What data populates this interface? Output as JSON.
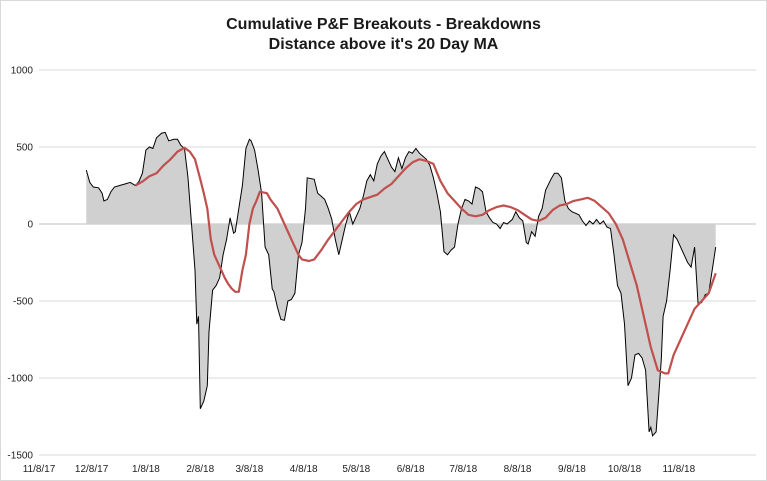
{
  "chart_data": {
    "type": "area",
    "title": "Cumulative P&F Breakouts - Breakdowns",
    "subtitle": "Distance above it's 20 Day MA",
    "xlabel": "",
    "ylabel": "",
    "ylim": [
      -1500,
      1000
    ],
    "yticks": [
      1000,
      500,
      0,
      -500,
      -1000,
      -1500
    ],
    "x_date_range": [
      "2017-11-08",
      "2018-12-22"
    ],
    "xtick_labels": [
      "11/8/17",
      "12/8/17",
      "1/8/18",
      "2/8/18",
      "3/8/18",
      "4/8/18",
      "5/8/18",
      "6/8/18",
      "7/8/18",
      "8/8/18",
      "9/8/18",
      "10/8/18",
      "11/8/18"
    ],
    "xtick_dates": [
      "2017-11-08",
      "2017-12-08",
      "2018-01-08",
      "2018-02-08",
      "2018-03-08",
      "2018-04-08",
      "2018-05-08",
      "2018-06-08",
      "2018-07-08",
      "2018-08-08",
      "2018-09-08",
      "2018-10-08",
      "2018-11-08"
    ],
    "grid": "horizontal",
    "colors": {
      "area_fill": "#d0d0d0",
      "area_line": "#000000",
      "ma_line": "#c0504d"
    },
    "series": [
      {
        "name": "",
        "style": "area",
        "points": [
          [
            "2017-12-05",
            350
          ],
          [
            "2017-12-07",
            270
          ],
          [
            "2017-12-09",
            240
          ],
          [
            "2017-12-12",
            235
          ],
          [
            "2017-12-14",
            200
          ],
          [
            "2017-12-15",
            150
          ],
          [
            "2017-12-17",
            160
          ],
          [
            "2017-12-19",
            210
          ],
          [
            "2017-12-21",
            240
          ],
          [
            "2017-12-24",
            250
          ],
          [
            "2017-12-27",
            260
          ],
          [
            "2017-12-30",
            270
          ],
          [
            "2018-01-02",
            250
          ],
          [
            "2018-01-04",
            275
          ],
          [
            "2018-01-06",
            330
          ],
          [
            "2018-01-08",
            480
          ],
          [
            "2018-01-10",
            500
          ],
          [
            "2018-01-12",
            490
          ],
          [
            "2018-01-14",
            560
          ],
          [
            "2018-01-17",
            590
          ],
          [
            "2018-01-19",
            595
          ],
          [
            "2018-01-21",
            540
          ],
          [
            "2018-01-24",
            550
          ],
          [
            "2018-01-26",
            550
          ],
          [
            "2018-01-28",
            510
          ],
          [
            "2018-01-30",
            490
          ],
          [
            "2018-02-01",
            300
          ],
          [
            "2018-02-03",
            0
          ],
          [
            "2018-02-05",
            -300
          ],
          [
            "2018-02-06",
            -650
          ],
          [
            "2018-02-07",
            -600
          ],
          [
            "2018-02-08",
            -1200
          ],
          [
            "2018-02-10",
            -1150
          ],
          [
            "2018-02-12",
            -1050
          ],
          [
            "2018-02-13",
            -700
          ],
          [
            "2018-02-15",
            -430
          ],
          [
            "2018-02-17",
            -400
          ],
          [
            "2018-02-19",
            -350
          ],
          [
            "2018-02-21",
            -200
          ],
          [
            "2018-02-23",
            -100
          ],
          [
            "2018-02-25",
            40
          ],
          [
            "2018-02-27",
            -60
          ],
          [
            "2018-02-28",
            -50
          ],
          [
            "2018-03-02",
            100
          ],
          [
            "2018-03-04",
            250
          ],
          [
            "2018-03-06",
            490
          ],
          [
            "2018-03-08",
            550
          ],
          [
            "2018-03-09",
            540
          ],
          [
            "2018-03-11",
            480
          ],
          [
            "2018-03-13",
            350
          ],
          [
            "2018-03-15",
            200
          ],
          [
            "2018-03-17",
            -150
          ],
          [
            "2018-03-19",
            -200
          ],
          [
            "2018-03-21",
            -420
          ],
          [
            "2018-03-22",
            -440
          ],
          [
            "2018-03-24",
            -540
          ],
          [
            "2018-03-26",
            -620
          ],
          [
            "2018-03-28",
            -625
          ],
          [
            "2018-03-30",
            -500
          ],
          [
            "2018-04-01",
            -490
          ],
          [
            "2018-04-03",
            -450
          ],
          [
            "2018-04-05",
            -200
          ],
          [
            "2018-04-07",
            -120
          ],
          [
            "2018-04-09",
            100
          ],
          [
            "2018-04-10",
            300
          ],
          [
            "2018-04-14",
            290
          ],
          [
            "2018-04-16",
            200
          ],
          [
            "2018-04-18",
            180
          ],
          [
            "2018-04-20",
            160
          ],
          [
            "2018-04-22",
            100
          ],
          [
            "2018-04-24",
            30
          ],
          [
            "2018-04-26",
            -100
          ],
          [
            "2018-04-28",
            -200
          ],
          [
            "2018-04-30",
            -100
          ],
          [
            "2018-05-02",
            0
          ],
          [
            "2018-05-04",
            80
          ],
          [
            "2018-05-06",
            0
          ],
          [
            "2018-05-08",
            50
          ],
          [
            "2018-05-10",
            100
          ],
          [
            "2018-05-12",
            180
          ],
          [
            "2018-05-14",
            280
          ],
          [
            "2018-05-16",
            320
          ],
          [
            "2018-05-18",
            280
          ],
          [
            "2018-05-20",
            390
          ],
          [
            "2018-05-22",
            440
          ],
          [
            "2018-05-24",
            470
          ],
          [
            "2018-05-26",
            420
          ],
          [
            "2018-05-28",
            370
          ],
          [
            "2018-05-30",
            340
          ],
          [
            "2018-06-01",
            430
          ],
          [
            "2018-06-03",
            360
          ],
          [
            "2018-06-05",
            430
          ],
          [
            "2018-06-07",
            470
          ],
          [
            "2018-06-09",
            460
          ],
          [
            "2018-06-11",
            490
          ],
          [
            "2018-06-13",
            460
          ],
          [
            "2018-06-15",
            440
          ],
          [
            "2018-06-17",
            420
          ],
          [
            "2018-06-19",
            380
          ],
          [
            "2018-06-21",
            300
          ],
          [
            "2018-06-23",
            200
          ],
          [
            "2018-06-25",
            80
          ],
          [
            "2018-06-27",
            -180
          ],
          [
            "2018-06-29",
            -200
          ],
          [
            "2018-07-01",
            -170
          ],
          [
            "2018-07-03",
            -150
          ],
          [
            "2018-07-05",
            0
          ],
          [
            "2018-07-07",
            100
          ],
          [
            "2018-07-09",
            160
          ],
          [
            "2018-07-11",
            150
          ],
          [
            "2018-07-13",
            130
          ],
          [
            "2018-07-15",
            240
          ],
          [
            "2018-07-17",
            230
          ],
          [
            "2018-07-19",
            210
          ],
          [
            "2018-07-21",
            80
          ],
          [
            "2018-07-23",
            40
          ],
          [
            "2018-07-25",
            10
          ],
          [
            "2018-07-27",
            0
          ],
          [
            "2018-07-29",
            -30
          ],
          [
            "2018-07-31",
            10
          ],
          [
            "2018-08-02",
            0
          ],
          [
            "2018-08-05",
            30
          ],
          [
            "2018-08-07",
            80
          ],
          [
            "2018-08-09",
            40
          ],
          [
            "2018-08-11",
            20
          ],
          [
            "2018-08-13",
            -120
          ],
          [
            "2018-08-14",
            -130
          ],
          [
            "2018-08-16",
            -50
          ],
          [
            "2018-08-18",
            -80
          ],
          [
            "2018-08-20",
            50
          ],
          [
            "2018-08-22",
            100
          ],
          [
            "2018-08-24",
            220
          ],
          [
            "2018-08-27",
            290
          ],
          [
            "2018-08-29",
            330
          ],
          [
            "2018-08-31",
            330
          ],
          [
            "2018-09-02",
            300
          ],
          [
            "2018-09-04",
            150
          ],
          [
            "2018-09-06",
            100
          ],
          [
            "2018-09-08",
            80
          ],
          [
            "2018-09-10",
            70
          ],
          [
            "2018-09-12",
            60
          ],
          [
            "2018-09-14",
            20
          ],
          [
            "2018-09-16",
            -10
          ],
          [
            "2018-09-18",
            20
          ],
          [
            "2018-09-20",
            0
          ],
          [
            "2018-09-22",
            30
          ],
          [
            "2018-09-24",
            0
          ],
          [
            "2018-09-26",
            20
          ],
          [
            "2018-09-28",
            -20
          ],
          [
            "2018-09-30",
            -30
          ],
          [
            "2018-10-02",
            -200
          ],
          [
            "2018-10-04",
            -400
          ],
          [
            "2018-10-06",
            -450
          ],
          [
            "2018-10-08",
            -650
          ],
          [
            "2018-10-10",
            -1050
          ],
          [
            "2018-10-12",
            -1000
          ],
          [
            "2018-10-14",
            -850
          ],
          [
            "2018-10-16",
            -840
          ],
          [
            "2018-10-18",
            -870
          ],
          [
            "2018-10-20",
            -950
          ],
          [
            "2018-10-22",
            -1350
          ],
          [
            "2018-10-23",
            -1320
          ],
          [
            "2018-10-24",
            -1375
          ],
          [
            "2018-10-26",
            -1350
          ],
          [
            "2018-10-27",
            -1200
          ],
          [
            "2018-10-29",
            -880
          ],
          [
            "2018-10-30",
            -600
          ],
          [
            "2018-11-01",
            -500
          ],
          [
            "2018-11-03",
            -300
          ],
          [
            "2018-11-05",
            -70
          ],
          [
            "2018-11-07",
            -100
          ],
          [
            "2018-11-09",
            -150
          ],
          [
            "2018-11-11",
            -200
          ],
          [
            "2018-11-13",
            -250
          ],
          [
            "2018-11-15",
            -280
          ],
          [
            "2018-11-17",
            -150
          ],
          [
            "2018-11-19",
            -520
          ],
          [
            "2018-11-21",
            -510
          ],
          [
            "2018-11-23",
            -460
          ],
          [
            "2018-11-25",
            -450
          ],
          [
            "2018-11-27",
            -300
          ],
          [
            "2018-11-29",
            -150
          ]
        ]
      },
      {
        "name": "",
        "style": "line",
        "points": [
          [
            "2018-01-02",
            250
          ],
          [
            "2018-01-06",
            275
          ],
          [
            "2018-01-10",
            310
          ],
          [
            "2018-01-14",
            330
          ],
          [
            "2018-01-18",
            380
          ],
          [
            "2018-01-22",
            420
          ],
          [
            "2018-01-26",
            470
          ],
          [
            "2018-01-30",
            495
          ],
          [
            "2018-02-02",
            470
          ],
          [
            "2018-02-05",
            420
          ],
          [
            "2018-02-08",
            290
          ],
          [
            "2018-02-10",
            200
          ],
          [
            "2018-02-12",
            100
          ],
          [
            "2018-02-14",
            -100
          ],
          [
            "2018-02-16",
            -200
          ],
          [
            "2018-02-20",
            -300
          ],
          [
            "2018-02-22",
            -350
          ],
          [
            "2018-02-24",
            -390
          ],
          [
            "2018-02-26",
            -420
          ],
          [
            "2018-02-28",
            -440
          ],
          [
            "2018-03-02",
            -440
          ],
          [
            "2018-03-04",
            -300
          ],
          [
            "2018-03-06",
            -200
          ],
          [
            "2018-03-08",
            0
          ],
          [
            "2018-03-10",
            100
          ],
          [
            "2018-03-12",
            150
          ],
          [
            "2018-03-14",
            210
          ],
          [
            "2018-03-18",
            200
          ],
          [
            "2018-03-20",
            160
          ],
          [
            "2018-03-24",
            100
          ],
          [
            "2018-03-28",
            0
          ],
          [
            "2018-04-01",
            -100
          ],
          [
            "2018-04-05",
            -200
          ],
          [
            "2018-04-07",
            -230
          ],
          [
            "2018-04-11",
            -240
          ],
          [
            "2018-04-14",
            -230
          ],
          [
            "2018-04-18",
            -170
          ],
          [
            "2018-04-22",
            -100
          ],
          [
            "2018-04-26",
            -40
          ],
          [
            "2018-04-30",
            20
          ],
          [
            "2018-05-04",
            80
          ],
          [
            "2018-05-08",
            130
          ],
          [
            "2018-05-12",
            160
          ],
          [
            "2018-05-16",
            175
          ],
          [
            "2018-05-20",
            190
          ],
          [
            "2018-05-24",
            230
          ],
          [
            "2018-05-28",
            260
          ],
          [
            "2018-06-01",
            310
          ],
          [
            "2018-06-05",
            360
          ],
          [
            "2018-06-09",
            400
          ],
          [
            "2018-06-13",
            420
          ],
          [
            "2018-06-17",
            410
          ],
          [
            "2018-06-21",
            390
          ],
          [
            "2018-06-25",
            280
          ],
          [
            "2018-06-29",
            200
          ],
          [
            "2018-07-03",
            150
          ],
          [
            "2018-07-07",
            100
          ],
          [
            "2018-07-11",
            60
          ],
          [
            "2018-07-15",
            50
          ],
          [
            "2018-07-19",
            60
          ],
          [
            "2018-07-23",
            90
          ],
          [
            "2018-07-27",
            110
          ],
          [
            "2018-07-31",
            120
          ],
          [
            "2018-08-04",
            110
          ],
          [
            "2018-08-08",
            90
          ],
          [
            "2018-08-12",
            60
          ],
          [
            "2018-08-16",
            30
          ],
          [
            "2018-08-20",
            20
          ],
          [
            "2018-08-24",
            40
          ],
          [
            "2018-08-28",
            90
          ],
          [
            "2018-09-01",
            120
          ],
          [
            "2018-09-05",
            130
          ],
          [
            "2018-09-09",
            150
          ],
          [
            "2018-09-13",
            160
          ],
          [
            "2018-09-17",
            170
          ],
          [
            "2018-09-21",
            150
          ],
          [
            "2018-09-25",
            110
          ],
          [
            "2018-09-29",
            70
          ],
          [
            "2018-10-03",
            0
          ],
          [
            "2018-10-07",
            -100
          ],
          [
            "2018-10-11",
            -250
          ],
          [
            "2018-10-15",
            -400
          ],
          [
            "2018-10-19",
            -600
          ],
          [
            "2018-10-23",
            -800
          ],
          [
            "2018-10-27",
            -950
          ],
          [
            "2018-10-31",
            -970
          ],
          [
            "2018-11-02",
            -970
          ],
          [
            "2018-11-05",
            -850
          ],
          [
            "2018-11-09",
            -750
          ],
          [
            "2018-11-13",
            -650
          ],
          [
            "2018-11-17",
            -550
          ],
          [
            "2018-11-21",
            -500
          ],
          [
            "2018-11-25",
            -450
          ],
          [
            "2018-11-29",
            -320
          ]
        ]
      }
    ]
  }
}
